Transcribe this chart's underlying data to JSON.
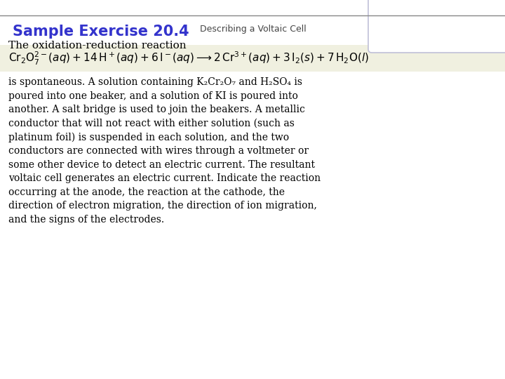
{
  "title_bold": "Sample Exercise 20.4",
  "title_subtitle": "Describing a Voltaic Cell",
  "title_color": "#3333cc",
  "subtitle_color": "#444444",
  "bg_color": "#ffffff",
  "header_line_color": "#777777",
  "equation_bg": "#f0f0e0",
  "body_text": "is spontaneous. A solution containing K₂Cr₂O₇ and H₂SO₄ is\npoured into one beaker, and a solution of KI is poured into\nanother. A salt bridge is used to join the beakers. A metallic\nconductor that will not react with either solution (such as\nplatinum foil) is suspended in each solution, and the two\nconductors are connected with wires through a voltmeter or\nsome other device to detect an electric current. The resultant\nvoltaic cell generates an electric current. Indicate the reaction\noccurring at the anode, the reaction at the cathode, the\ndirection of electron migration, the direction of ion migration,\nand the signs of the electrodes.",
  "intro_text": "The oxidation-reduction reaction",
  "decoration_color": "#c0c0d8",
  "top_line_color": "#888888",
  "title_fontsize": 15,
  "subtitle_fontsize": 9,
  "intro_fontsize": 11,
  "body_fontsize": 10,
  "eq_fontsize": 11
}
